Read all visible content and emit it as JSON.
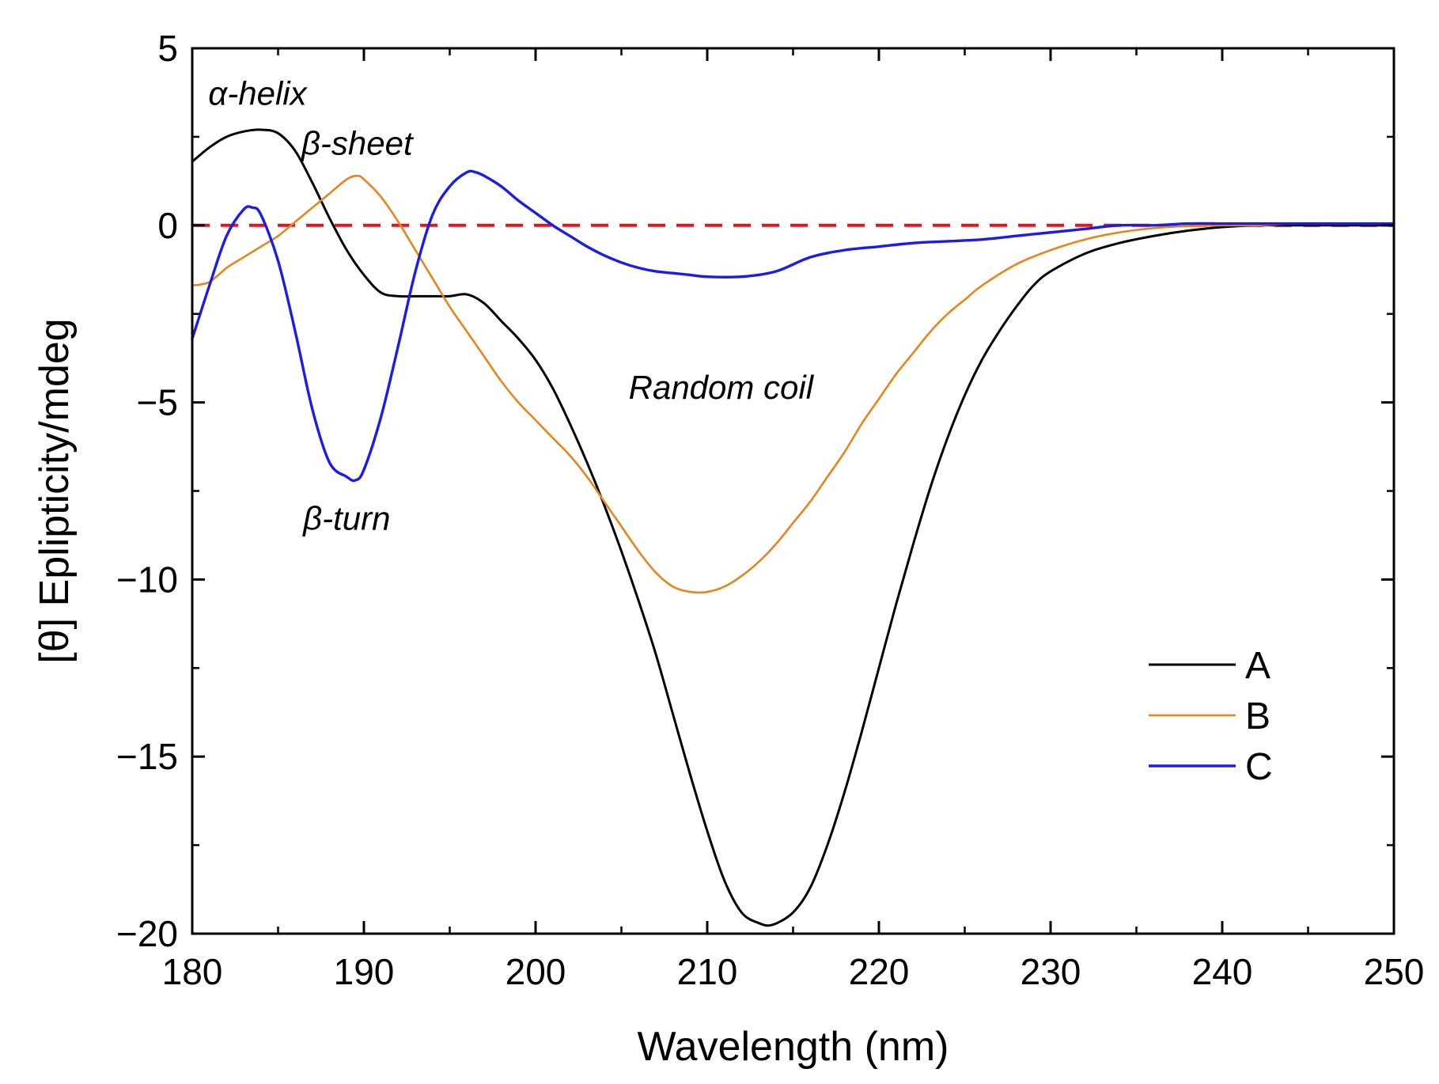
{
  "chart_data": {
    "type": "line",
    "title": "",
    "xlabel": "Wavelength (nm)",
    "ylabel": "[θ] Eplipticity/mdeg",
    "xlim": [
      180,
      250
    ],
    "ylim": [
      -20,
      5
    ],
    "x_ticks": [
      180,
      190,
      200,
      210,
      220,
      230,
      240,
      250
    ],
    "y_ticks": [
      5,
      0,
      -5,
      -10,
      -15,
      -20
    ],
    "x_tick_labels": [
      "180",
      "190",
      "200",
      "210",
      "220",
      "230",
      "240",
      "250"
    ],
    "y_tick_labels": [
      "5",
      "0",
      "−5",
      "−10",
      "−15",
      "−20"
    ],
    "grid": false,
    "legend_position": "bottom-right",
    "reference_line": {
      "y": 0,
      "color": "#e8141c",
      "style": "dashed"
    },
    "annotations": [
      {
        "text": "α-helix",
        "x": 183.8,
        "y": 3.4
      },
      {
        "text": "β-sheet",
        "x": 189.6,
        "y": 2.0
      },
      {
        "text": "Random coil",
        "x": 210.8,
        "y": -4.9
      },
      {
        "text": "β-turn",
        "x": 189.0,
        "y": -8.6
      }
    ],
    "series": [
      {
        "name": "A",
        "color": "#000000",
        "x": [
          180,
          181,
          182,
          183,
          184,
          185,
          186,
          187,
          188,
          189,
          190,
          191,
          192,
          193,
          194,
          195,
          196,
          197,
          198,
          199,
          200,
          201,
          202,
          203,
          204,
          205,
          206,
          207,
          208,
          209,
          210,
          211,
          212,
          213,
          213.8,
          215,
          216,
          217,
          218,
          219,
          220,
          221,
          222,
          223,
          224,
          225,
          226,
          227,
          228,
          229,
          230,
          232,
          234,
          236,
          238,
          240,
          242,
          244,
          246,
          248,
          250
        ],
        "y": [
          1.8,
          2.2,
          2.5,
          2.65,
          2.7,
          2.6,
          2.1,
          1.2,
          0.2,
          -0.7,
          -1.4,
          -1.9,
          -2.0,
          -2.0,
          -2.0,
          -2.0,
          -1.95,
          -2.2,
          -2.7,
          -3.2,
          -3.8,
          -4.6,
          -5.6,
          -6.7,
          -7.9,
          -9.2,
          -10.6,
          -12.1,
          -13.8,
          -15.5,
          -17.1,
          -18.5,
          -19.4,
          -19.7,
          -19.75,
          -19.4,
          -18.7,
          -17.5,
          -16.0,
          -14.3,
          -12.5,
          -10.7,
          -9.0,
          -7.4,
          -6.0,
          -4.8,
          -3.8,
          -3.0,
          -2.3,
          -1.7,
          -1.3,
          -0.8,
          -0.5,
          -0.3,
          -0.15,
          -0.05,
          0.0,
          0.0,
          0.0,
          0.0,
          0.0
        ]
      },
      {
        "name": "B",
        "color": "#e8841c",
        "x": [
          180,
          181,
          182,
          183,
          184,
          185,
          186,
          187,
          188,
          189,
          189.6,
          190,
          191,
          192,
          193,
          194,
          195,
          196,
          197,
          198,
          199,
          200,
          201,
          202,
          203,
          204,
          205,
          206,
          207,
          208,
          209,
          210,
          211,
          212,
          213,
          214,
          215,
          216,
          217,
          218,
          219,
          220,
          221,
          222,
          223,
          224,
          225,
          226,
          228,
          230,
          232,
          234,
          236,
          238,
          240,
          242,
          244,
          246,
          248,
          250
        ],
        "y": [
          -1.7,
          -1.6,
          -1.2,
          -0.9,
          -0.6,
          -0.3,
          0.1,
          0.5,
          0.9,
          1.3,
          1.4,
          1.3,
          0.8,
          0.1,
          -0.7,
          -1.5,
          -2.3,
          -3.0,
          -3.7,
          -4.4,
          -5.0,
          -5.5,
          -6.0,
          -6.5,
          -7.1,
          -7.8,
          -8.5,
          -9.2,
          -9.8,
          -10.2,
          -10.35,
          -10.35,
          -10.2,
          -9.9,
          -9.5,
          -9.0,
          -8.4,
          -7.8,
          -7.1,
          -6.4,
          -5.6,
          -4.9,
          -4.2,
          -3.6,
          -3.0,
          -2.5,
          -2.1,
          -1.7,
          -1.1,
          -0.7,
          -0.4,
          -0.2,
          -0.08,
          -0.02,
          0.0,
          0.0,
          0.05,
          0.05,
          0.05,
          0.05
        ]
      },
      {
        "name": "C",
        "color": "#1c1ce8",
        "x": [
          180,
          181,
          182,
          183,
          183.5,
          184,
          185,
          186,
          187,
          188,
          189,
          189.5,
          190,
          191,
          192,
          193,
          194,
          195,
          196,
          196.5,
          197,
          198,
          199,
          200,
          201,
          202,
          203,
          204,
          205,
          206,
          207,
          208,
          209,
          210,
          212,
          214,
          216,
          218,
          220,
          222,
          224,
          226,
          228,
          230,
          232,
          234,
          236,
          238,
          240,
          242,
          244,
          246,
          248,
          250
        ],
        "y": [
          -3.2,
          -1.7,
          -0.3,
          0.45,
          0.5,
          0.3,
          -1.0,
          -3.0,
          -5.2,
          -6.7,
          -7.1,
          -7.2,
          -6.9,
          -5.4,
          -3.4,
          -1.3,
          0.3,
          1.1,
          1.5,
          1.5,
          1.4,
          1.1,
          0.7,
          0.35,
          0.0,
          -0.3,
          -0.6,
          -0.85,
          -1.05,
          -1.2,
          -1.3,
          -1.35,
          -1.4,
          -1.45,
          -1.45,
          -1.3,
          -0.9,
          -0.7,
          -0.6,
          -0.5,
          -0.45,
          -0.4,
          -0.3,
          -0.2,
          -0.1,
          0.0,
          0.0,
          0.05,
          0.05,
          0.05,
          0.05,
          0.05,
          0.05,
          0.05
        ]
      }
    ]
  }
}
